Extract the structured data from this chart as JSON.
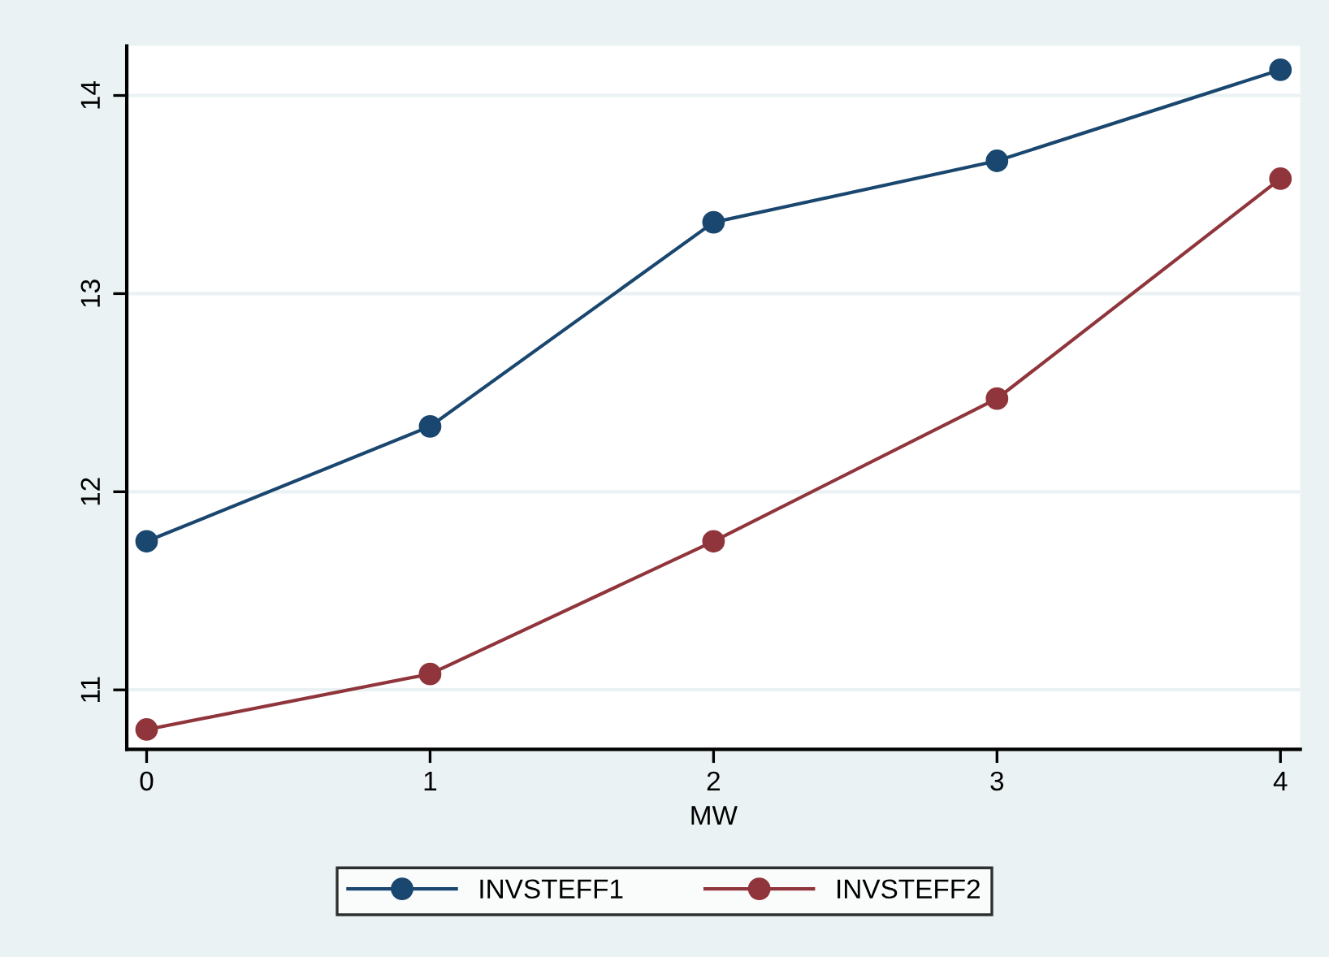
{
  "chart_data": {
    "type": "line",
    "xlabel": "MW",
    "x": [
      0,
      1,
      2,
      3,
      4
    ],
    "series": [
      {
        "name": "INVSTEFF1",
        "color": "#1a476f",
        "values": [
          11.75,
          12.33,
          13.36,
          13.67,
          14.13
        ]
      },
      {
        "name": "INVSTEFF2",
        "color": "#90353b",
        "values": [
          10.8,
          11.08,
          11.75,
          12.47,
          13.58
        ]
      }
    ],
    "xlim": [
      -0.07,
      4.07
    ],
    "ylim": [
      10.7,
      14.25
    ],
    "xticks": [
      0,
      1,
      2,
      3,
      4
    ],
    "yticks": [
      11,
      12,
      13,
      14
    ],
    "grid": "y",
    "legend": "bottom",
    "marker": "circle",
    "line_style": "solid"
  }
}
